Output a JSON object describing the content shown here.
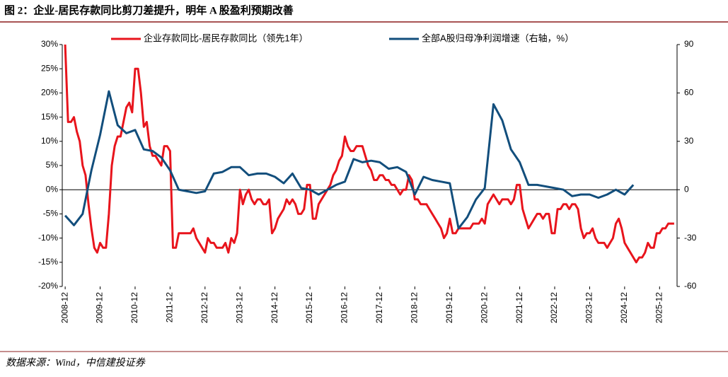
{
  "title": "图 2：企业-居民存款同比剪刀差提升，明年 A 股盈利预期改善",
  "source": "数据来源：Wind，中信建投证券",
  "chart_data": {
    "type": "line",
    "xlim": [
      "2008-11",
      "2026-06"
    ],
    "xticks": [
      "2008-12",
      "2009-12",
      "2010-12",
      "2011-12",
      "2012-12",
      "2013-12",
      "2014-12",
      "2015-12",
      "2016-12",
      "2017-12",
      "2018-12",
      "2019-12",
      "2020-12",
      "2021-12",
      "2022-12",
      "2023-12",
      "2024-12",
      "2025-12"
    ],
    "ylim": [
      -20,
      30
    ],
    "yticks": [
      {
        "value": 30,
        "label": "30%"
      },
      {
        "value": 25,
        "label": "25%"
      },
      {
        "value": 20,
        "label": "20%"
      },
      {
        "value": 15,
        "label": "15%"
      },
      {
        "value": 10,
        "label": "10%"
      },
      {
        "value": 5,
        "label": "5%"
      },
      {
        "value": 0,
        "label": "0%"
      },
      {
        "value": -5,
        "label": "-5%"
      },
      {
        "value": -10,
        "label": "-10%"
      },
      {
        "value": -15,
        "label": "-15%"
      },
      {
        "value": -20,
        "label": "-20%"
      }
    ],
    "y2lim": [
      -60,
      90
    ],
    "y2ticks": [
      90,
      60,
      30,
      0,
      -30,
      -60
    ],
    "series": [
      {
        "name": "企业存款同比-居民存款同比（领先1年）",
        "color": "#e8141c",
        "x": [
          "2008-12",
          "2009-01",
          "2009-02",
          "2009-03",
          "2009-04",
          "2009-05",
          "2009-06",
          "2009-07",
          "2009-08",
          "2009-09",
          "2009-10",
          "2009-11",
          "2009-12",
          "2010-01",
          "2010-02",
          "2010-03",
          "2010-04",
          "2010-05",
          "2010-06",
          "2010-07",
          "2010-08",
          "2010-09",
          "2010-10",
          "2010-11",
          "2010-12",
          "2011-01",
          "2011-02",
          "2011-03",
          "2011-04",
          "2011-05",
          "2011-06",
          "2011-07",
          "2011-08",
          "2011-09",
          "2011-10",
          "2011-11",
          "2011-12",
          "2012-01",
          "2012-02",
          "2012-03",
          "2012-04",
          "2012-05",
          "2012-06",
          "2012-07",
          "2012-08",
          "2012-09",
          "2012-10",
          "2012-11",
          "2012-12",
          "2013-01",
          "2013-02",
          "2013-03",
          "2013-04",
          "2013-05",
          "2013-06",
          "2013-07",
          "2013-08",
          "2013-09",
          "2013-10",
          "2013-11",
          "2013-12",
          "2014-01",
          "2014-02",
          "2014-03",
          "2014-04",
          "2014-05",
          "2014-06",
          "2014-07",
          "2014-08",
          "2014-09",
          "2014-10",
          "2014-11",
          "2014-12",
          "2015-01",
          "2015-02",
          "2015-03",
          "2015-04",
          "2015-05",
          "2015-06",
          "2015-07",
          "2015-08",
          "2015-09",
          "2015-10",
          "2015-11",
          "2015-12",
          "2016-01",
          "2016-02",
          "2016-03",
          "2016-04",
          "2016-05",
          "2016-06",
          "2016-07",
          "2016-08",
          "2016-09",
          "2016-10",
          "2016-11",
          "2016-12",
          "2017-01",
          "2017-02",
          "2017-03",
          "2017-04",
          "2017-05",
          "2017-06",
          "2017-07",
          "2017-08",
          "2017-09",
          "2017-10",
          "2017-11",
          "2017-12",
          "2018-01",
          "2018-02",
          "2018-03",
          "2018-04",
          "2018-05",
          "2018-06",
          "2018-07",
          "2018-08",
          "2018-09",
          "2018-10",
          "2018-11",
          "2018-12",
          "2019-01",
          "2019-02",
          "2019-03",
          "2019-04",
          "2019-05",
          "2019-06",
          "2019-07",
          "2019-08",
          "2019-09",
          "2019-10",
          "2019-11",
          "2019-12",
          "2020-01",
          "2020-02",
          "2020-03",
          "2020-04",
          "2020-05",
          "2020-06",
          "2020-07",
          "2020-08",
          "2020-09",
          "2020-10",
          "2020-11",
          "2020-12",
          "2021-01",
          "2021-02",
          "2021-03",
          "2021-04",
          "2021-05",
          "2021-06",
          "2021-07",
          "2021-08",
          "2021-09",
          "2021-10",
          "2021-11",
          "2021-12",
          "2022-01",
          "2022-02",
          "2022-03",
          "2022-04",
          "2022-05",
          "2022-06",
          "2022-07",
          "2022-08",
          "2022-09",
          "2022-10",
          "2022-11",
          "2022-12",
          "2023-01",
          "2023-02",
          "2023-03",
          "2023-04",
          "2023-05",
          "2023-06",
          "2023-07",
          "2023-08",
          "2023-09",
          "2023-10",
          "2023-11",
          "2023-12",
          "2024-01",
          "2024-02",
          "2024-03",
          "2024-04",
          "2024-05",
          "2024-06",
          "2024-07",
          "2024-08",
          "2024-09",
          "2024-10",
          "2024-11",
          "2024-12",
          "2025-01",
          "2025-02",
          "2025-03",
          "2025-04",
          "2025-05",
          "2025-06",
          "2025-07",
          "2025-08",
          "2025-09",
          "2025-10",
          "2025-11",
          "2025-12",
          "2026-01",
          "2026-02",
          "2026-03",
          "2026-04",
          "2026-05"
        ],
        "values": [
          30,
          14,
          14,
          15,
          12,
          10,
          5,
          3,
          -3,
          -8,
          -12,
          -13,
          -11,
          -12,
          -12,
          -5,
          5,
          9,
          11,
          11,
          14,
          17,
          18,
          16,
          25,
          25,
          20,
          13,
          14,
          9,
          7,
          7,
          6,
          5,
          9,
          9,
          8,
          -12,
          -12,
          -9,
          -9,
          -9,
          -9,
          -9,
          -8,
          -10,
          -11,
          -12,
          -13,
          -10,
          -11,
          -11,
          -12,
          -12,
          -12,
          -11,
          -13,
          -10,
          -11,
          -9,
          0,
          -3,
          -1,
          0,
          -2,
          -3,
          -2,
          -2,
          -3,
          -3,
          -2,
          -9,
          -8,
          -6,
          -5,
          -4,
          -2,
          -3,
          -2,
          -3,
          -5,
          -5,
          -4,
          1,
          1,
          -6,
          -6,
          -3,
          -2,
          -1,
          0,
          1,
          3,
          4,
          6,
          7,
          11,
          9,
          8,
          8,
          9,
          9,
          9,
          7,
          5,
          4,
          2,
          2,
          3,
          3,
          2,
          2,
          1,
          1,
          0,
          -1,
          0,
          0,
          3,
          2,
          -2,
          -2,
          -3,
          -3,
          -3,
          -4,
          -5,
          -6,
          -7,
          -8,
          -10,
          -9,
          -6,
          -9,
          -9,
          -8,
          -8,
          -8,
          -8,
          -8,
          -7,
          -7,
          -7,
          -6,
          -7,
          -3,
          -2,
          -1,
          -2,
          -3,
          -2,
          -2,
          -2,
          -3,
          -2,
          1,
          1,
          -4,
          -6,
          -8,
          -7,
          -6,
          -5,
          -5,
          -6,
          -5,
          -5,
          -9,
          -9,
          -4,
          -4,
          -3,
          -3,
          -4,
          -3,
          -3,
          -4,
          -8,
          -10,
          -9,
          -9,
          -8,
          -10,
          -11,
          -11,
          -11,
          -12,
          -11,
          -10,
          -7,
          -6,
          -8,
          -11,
          -12,
          -13,
          -14,
          -15,
          -14,
          -14,
          -13,
          -11,
          -12,
          -12,
          -9,
          -9,
          -8,
          -8,
          -7,
          -7,
          -7
        ]
      },
      {
        "name": "全部A股归母净利润增速（右轴，%）",
        "color": "#124e7c",
        "axis": "y2",
        "x": [
          "2008-12",
          "2009-03",
          "2009-06",
          "2009-09",
          "2009-12",
          "2010-03",
          "2010-06",
          "2010-09",
          "2010-12",
          "2011-03",
          "2011-06",
          "2011-09",
          "2011-12",
          "2012-03",
          "2012-06",
          "2012-09",
          "2012-12",
          "2013-03",
          "2013-06",
          "2013-09",
          "2013-12",
          "2014-03",
          "2014-06",
          "2014-09",
          "2014-12",
          "2015-03",
          "2015-06",
          "2015-09",
          "2015-12",
          "2016-03",
          "2016-06",
          "2016-09",
          "2016-12",
          "2017-03",
          "2017-06",
          "2017-09",
          "2017-12",
          "2018-03",
          "2018-06",
          "2018-09",
          "2018-12",
          "2019-03",
          "2019-06",
          "2019-09",
          "2019-12",
          "2020-03",
          "2020-06",
          "2020-09",
          "2020-12",
          "2021-03",
          "2021-06",
          "2021-09",
          "2021-12",
          "2022-03",
          "2022-06",
          "2022-09",
          "2022-12",
          "2023-03",
          "2023-06",
          "2023-09",
          "2023-12",
          "2024-03",
          "2024-06",
          "2024-09",
          "2024-12",
          "2025-03"
        ],
        "values": [
          -16,
          -22,
          -15,
          12,
          34,
          61,
          40,
          35,
          37,
          25,
          24,
          20,
          12,
          0,
          -1,
          -2,
          -1,
          10,
          11,
          14,
          14,
          9,
          10,
          10,
          8,
          4,
          10,
          1,
          0,
          -3,
          0,
          3,
          5,
          19,
          17,
          18,
          17,
          13,
          14,
          11,
          -3,
          8,
          6,
          5,
          4,
          -24,
          -17,
          -6,
          1,
          53,
          43,
          25,
          17,
          3,
          3,
          2,
          1,
          0,
          -4,
          -3,
          -3,
          -5,
          -3,
          0,
          -3,
          3
        ]
      }
    ]
  }
}
